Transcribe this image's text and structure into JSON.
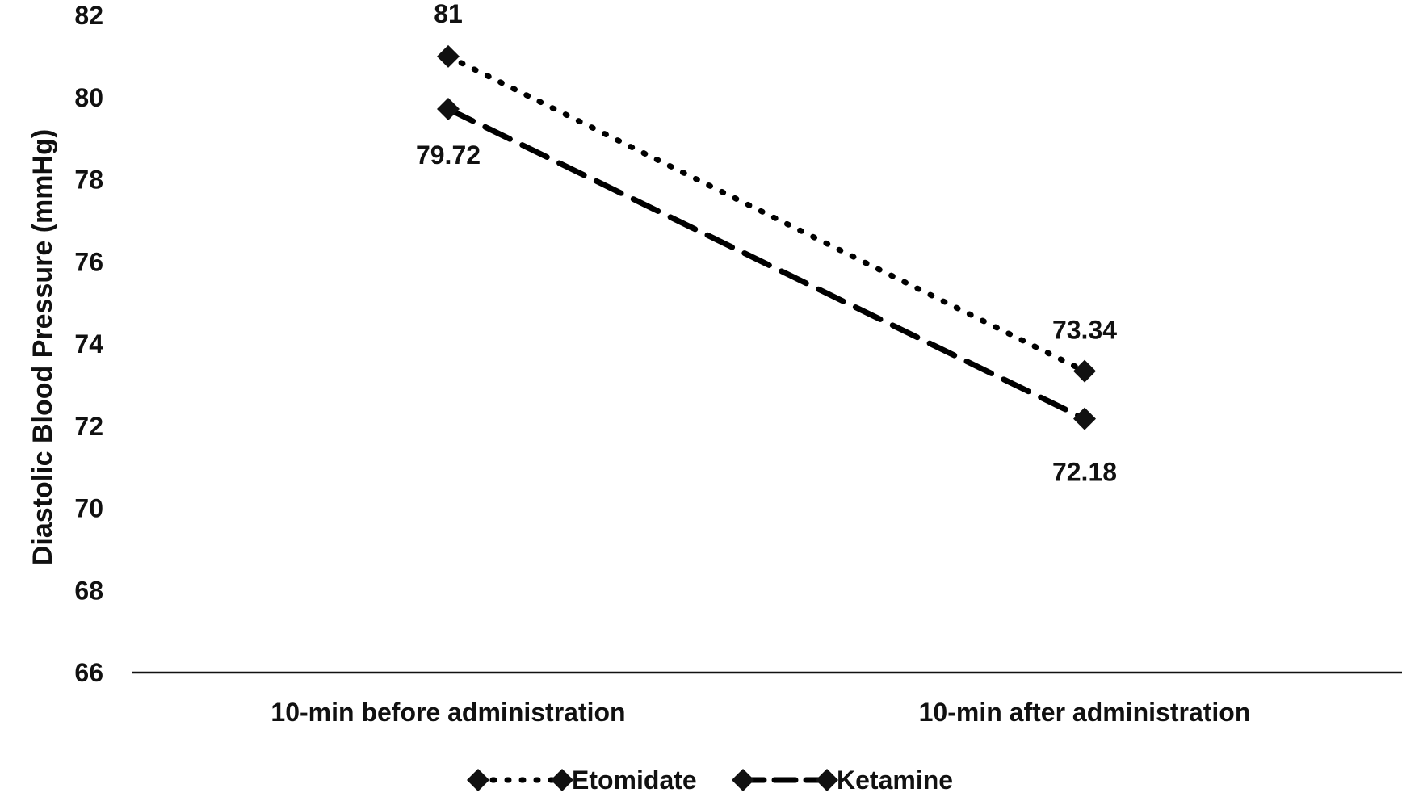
{
  "chart_data": {
    "type": "line",
    "title": "",
    "xlabel": "",
    "ylabel": "Diastolic Blood Pressure (mmHg)",
    "ylim": [
      66,
      82
    ],
    "yticks": [
      "66",
      "68",
      "70",
      "72",
      "74",
      "76",
      "78",
      "80",
      "82"
    ],
    "categories": [
      "10-min before administration",
      "10-min after administration"
    ],
    "grid": false,
    "legend_position": "bottom",
    "series": [
      {
        "name": "Etomidate",
        "values": [
          81,
          73.34
        ],
        "data_labels": [
          "81",
          "73.34"
        ],
        "line_style": "dotted",
        "marker": "diamond",
        "color": "#000000"
      },
      {
        "name": "Ketamine",
        "values": [
          79.72,
          72.18
        ],
        "data_labels": [
          "79.72",
          "72.18"
        ],
        "line_style": "dashed",
        "marker": "diamond",
        "color": "#000000"
      }
    ]
  }
}
